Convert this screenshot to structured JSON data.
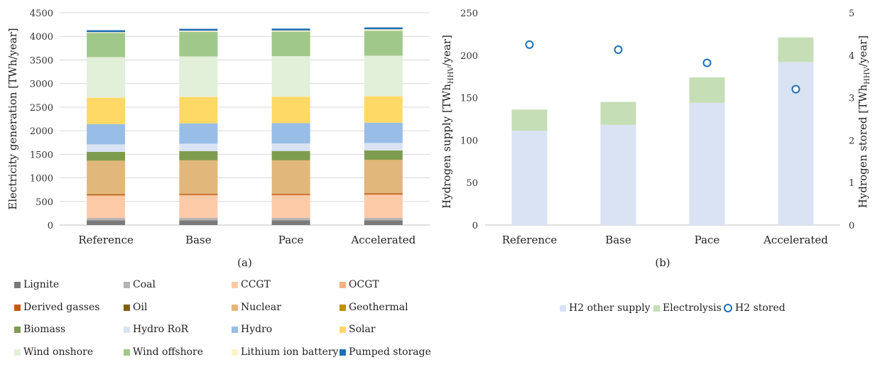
{
  "chart_data": [
    {
      "panel_label": "(a)",
      "type": "stacked-bar",
      "ylabel": "Electricity generation [TWh/year]",
      "ylim": [
        0,
        4500
      ],
      "yticks": [
        0,
        500,
        1000,
        1500,
        2000,
        2500,
        3000,
        3500,
        4000,
        4500
      ],
      "categories": [
        "Reference",
        "Base",
        "Pace",
        "Accelerated"
      ],
      "grid": true,
      "legend_position": "bottom",
      "series": [
        {
          "name": "Lignite",
          "color": "#7a7a7a",
          "values": [
            100,
            100,
            100,
            100
          ]
        },
        {
          "name": "Coal",
          "color": "#b4b4b4",
          "values": [
            50,
            50,
            50,
            50
          ]
        },
        {
          "name": "CCGT",
          "color": "#fdcaa8",
          "values": [
            460,
            470,
            470,
            480
          ]
        },
        {
          "name": "OCGT",
          "color": "#f4b183",
          "values": [
            20,
            20,
            20,
            20
          ]
        },
        {
          "name": "Derived gasses",
          "color": "#c55a11",
          "values": [
            20,
            20,
            20,
            20
          ]
        },
        {
          "name": "Oil",
          "color": "#7f6000",
          "values": [
            5,
            5,
            5,
            5
          ]
        },
        {
          "name": "Nuclear",
          "color": "#e2b77b",
          "values": [
            705,
            705,
            705,
            705
          ]
        },
        {
          "name": "Geothermal",
          "color": "#bf8f00",
          "values": [
            5,
            5,
            5,
            5
          ]
        },
        {
          "name": "Biomass",
          "color": "#7e9c4e",
          "values": [
            185,
            190,
            195,
            195
          ]
        },
        {
          "name": "Hydro RoR",
          "color": "#dae3f3",
          "values": [
            160,
            160,
            160,
            160
          ]
        },
        {
          "name": "Hydro",
          "color": "#98bde6",
          "values": [
            430,
            430,
            430,
            430
          ]
        },
        {
          "name": "Solar",
          "color": "#ffd966",
          "values": [
            560,
            560,
            560,
            560
          ]
        },
        {
          "name": "Wind onshore",
          "color": "#e2efd9",
          "values": [
            860,
            860,
            860,
            860
          ]
        },
        {
          "name": "Wind offshore",
          "color": "#a0c88a",
          "values": [
            510,
            520,
            520,
            530
          ]
        },
        {
          "name": "Lithium ion battery",
          "color": "#fff2cc",
          "values": [
            20,
            25,
            25,
            30
          ]
        },
        {
          "name": "Pumped storage",
          "color": "#1f6fb5",
          "values": [
            40,
            40,
            40,
            40
          ]
        }
      ]
    },
    {
      "panel_label": "(b)",
      "type": "stacked-bar",
      "ylabel": "Hydrogen supply [TWh",
      "ylabel_sub": "HHV",
      "ylabel_tail": "/year]",
      "y2label": "Hydrogen  stored [TWh",
      "y2label_sub": "HHV",
      "y2label_tail": "/year]",
      "ylim": [
        0,
        250
      ],
      "yticks": [
        0,
        50,
        100,
        150,
        200,
        250
      ],
      "y2lim": [
        0,
        5
      ],
      "y2ticks": [
        0,
        1,
        2,
        3,
        4,
        5
      ],
      "categories": [
        "Reference",
        "Base",
        "Pace",
        "Accelerated"
      ],
      "grid": false,
      "legend_position": "bottom",
      "series": [
        {
          "name": "H2 other supply",
          "color": "#dae3f3",
          "values": [
            111,
            118,
            144,
            192
          ]
        },
        {
          "name": "Electrolysis",
          "color": "#c5deb5",
          "values": [
            25,
            27,
            30,
            29
          ]
        }
      ],
      "scatter": {
        "name": "H2 stored",
        "color": "#1f6fb5",
        "axis": "right",
        "values": [
          4.25,
          4.13,
          3.82,
          3.2
        ]
      }
    }
  ]
}
